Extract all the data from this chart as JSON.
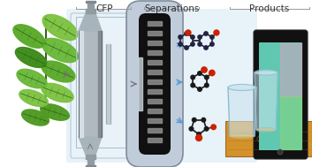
{
  "background_color": "#ffffff",
  "label_cfp": "CFP",
  "label_sep": "Separations",
  "label_prod": "Products",
  "label_color": "#333333",
  "label_fontsize": 7.5,
  "fig_width": 3.53,
  "fig_height": 1.89,
  "dpi": 100,
  "arrow_color": "#5b9bd5",
  "arrow_gray": "#777777",
  "bg_blue": "#d8eaf5",
  "leaf_colors": [
    "#7dc242",
    "#6ab83a",
    "#5aaa2a",
    "#4e9a22",
    "#3d8a18"
  ],
  "reactor_mid": "#b0b8c0",
  "reactor_light": "#e0e8ec",
  "reactor_dark": "#707880",
  "reactor_shine": "#f0f4f6",
  "sep_col_outer": "#b8c8d4",
  "sep_col_inner_dark": "#181818",
  "sep_col_band_light": "#aaaaaa",
  "mol_black": "#1a1a1a",
  "mol_red": "#cc2200",
  "mol_blue_dark": "#222244",
  "wood_tan": "#d4922a",
  "wood_dark": "#a06820",
  "wood_light": "#e8b060",
  "glass_fill": "#cce4f0",
  "glass_edge": "#88bbcc",
  "phone_frame": "#111111",
  "phone_screen_teal": "#60c8b0",
  "phone_screen_green": "#90d870",
  "phone_screen_pink": "#e0a0c0"
}
